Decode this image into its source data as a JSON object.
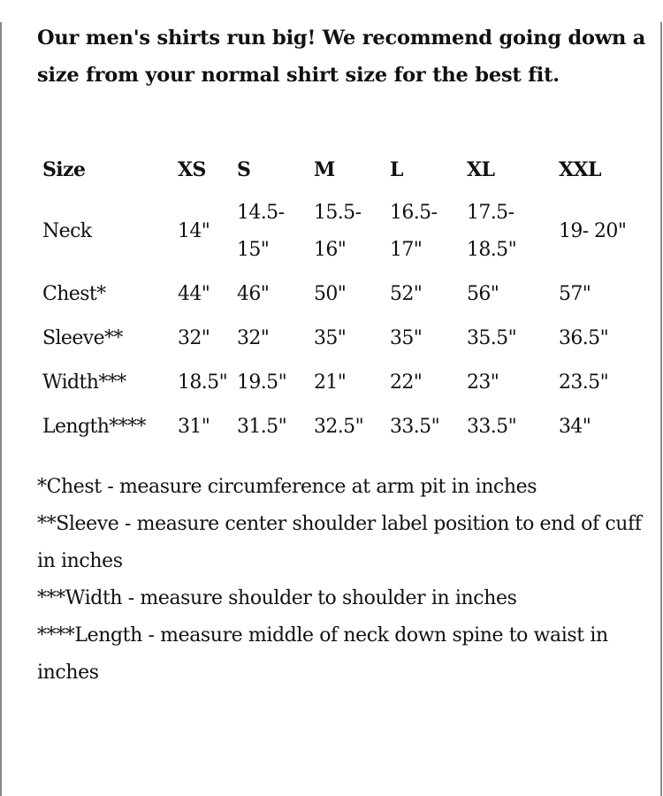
{
  "intro": "Our men's shirts run big! We recommend going down a size from your normal shirt size for the best fit.",
  "table": {
    "headers": [
      "Size",
      "XS",
      "S",
      "M",
      "L",
      "XL",
      "XXL"
    ],
    "rows": [
      {
        "label": "Neck",
        "values": [
          "14\"",
          "14.5- 15\"",
          "15.5- 16\"",
          "16.5- 17\"",
          "17.5- 18.5\"",
          "19- 20\""
        ]
      },
      {
        "label": "Chest*",
        "values": [
          "44\"",
          "46\"",
          "50\"",
          "52\"",
          "56\"",
          "57\""
        ]
      },
      {
        "label": "Sleeve**",
        "values": [
          "32\"",
          "32\"",
          "35\"",
          "35\"",
          "35.5\"",
          "36.5\""
        ]
      },
      {
        "label": "Width***",
        "values": [
          "18.5\"",
          "19.5\"",
          "21\"",
          "22\"",
          "23\"",
          "23.5\""
        ]
      },
      {
        "label": "Length****",
        "values": [
          "31\"",
          "31.5\"",
          "32.5\"",
          "33.5\"",
          "33.5\"",
          "34\""
        ]
      }
    ]
  },
  "notes": [
    "*Chest - measure circumference at arm pit in inches",
    "**Sleeve - measure center shoulder label position to end of cuff in inches",
    "***Width - measure shoulder to shoulder in inches",
    "****Length - measure middle of neck down spine to waist in inches"
  ]
}
